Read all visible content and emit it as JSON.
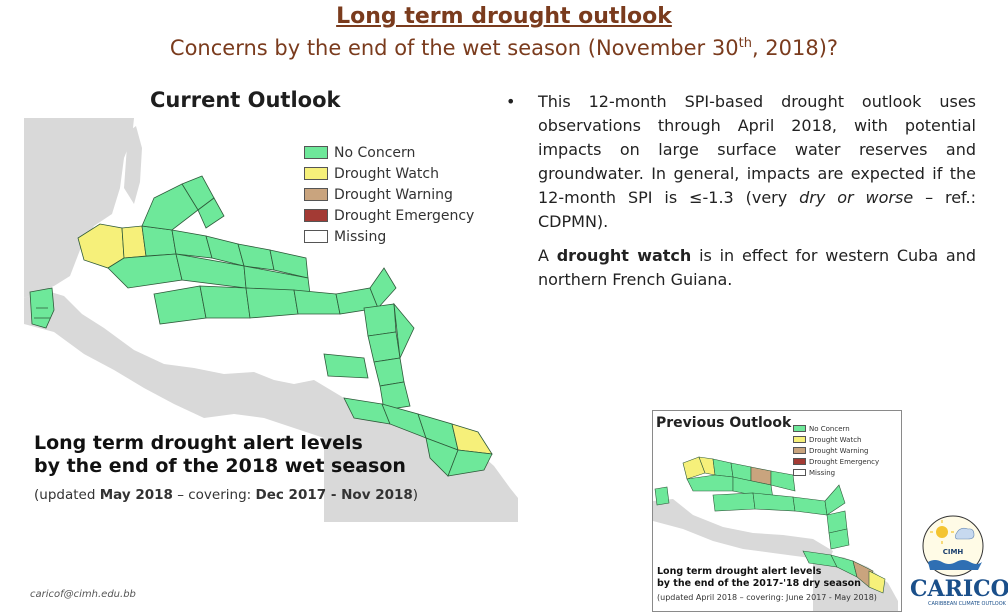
{
  "header": {
    "title": "Long term drought outlook",
    "subtitle_before": "Concerns by the end of the wet season (November 30",
    "subtitle_sup": "th",
    "subtitle_after": ", 2018)?"
  },
  "current": {
    "heading": "Current Outlook",
    "legend": [
      {
        "label": "No Concern",
        "color": "#6ee89a"
      },
      {
        "label": "Drought Watch",
        "color": "#f6f07a"
      },
      {
        "label": "Drought Warning",
        "color": "#c9a47e"
      },
      {
        "label": "Drought Emergency",
        "color": "#a33a34"
      },
      {
        "label": "Missing",
        "color": "#ffffff"
      }
    ],
    "caption_line1": "Long term drought alert levels",
    "caption_line2": "by the end of the 2018 wet season",
    "caption_sub_prefix": "(updated ",
    "caption_sub_bold1": "May 2018",
    "caption_sub_mid": " – covering: ",
    "caption_sub_bold2": "Dec 2017 - Nov 2018",
    "caption_sub_suffix": ")"
  },
  "bullets": {
    "dot": "•",
    "para1_a": "This 12-month SPI-based drought outlook uses observations through April 2018, with potential impacts on large surface water reserves and groundwater. In general, impacts are expected if the 12-month SPI is ≤-1.3 (very ",
    "para1_italic": "dry or worse",
    "para1_b": " – ref.: CDPMN).",
    "para2_a": "A ",
    "para2_bold": "drought watch",
    "para2_b": " is in effect for western Cuba and northern French Guiana."
  },
  "previous": {
    "heading": "Previous Outlook",
    "legend": [
      {
        "label": "No Concern",
        "color": "#6ee89a"
      },
      {
        "label": "Drought Watch",
        "color": "#f6f07a"
      },
      {
        "label": "Drought Warning",
        "color": "#c9a47e"
      },
      {
        "label": "Drought Emergency",
        "color": "#a33a34"
      },
      {
        "label": "Missing",
        "color": "#ffffff"
      }
    ],
    "caption_line1": "Long term drought alert levels",
    "caption_line2": "by the end of the 2017-'18 dry season",
    "caption_sub": "(updated April 2018 – covering: June 2017 - May 2018)"
  },
  "footer": {
    "email": "caricof@cimh.edu.bb",
    "cimh_label": "CIMH",
    "caricof_logo": "CARICOF",
    "caricof_tagline": "CARIBBEAN CLIMATE OUTLOOK FORUM"
  },
  "colors": {
    "title": "#7a3b1d",
    "land": "#d9d9d9",
    "no_concern": "#6ee89a",
    "watch": "#f6f07a",
    "warning": "#c9a47e"
  }
}
